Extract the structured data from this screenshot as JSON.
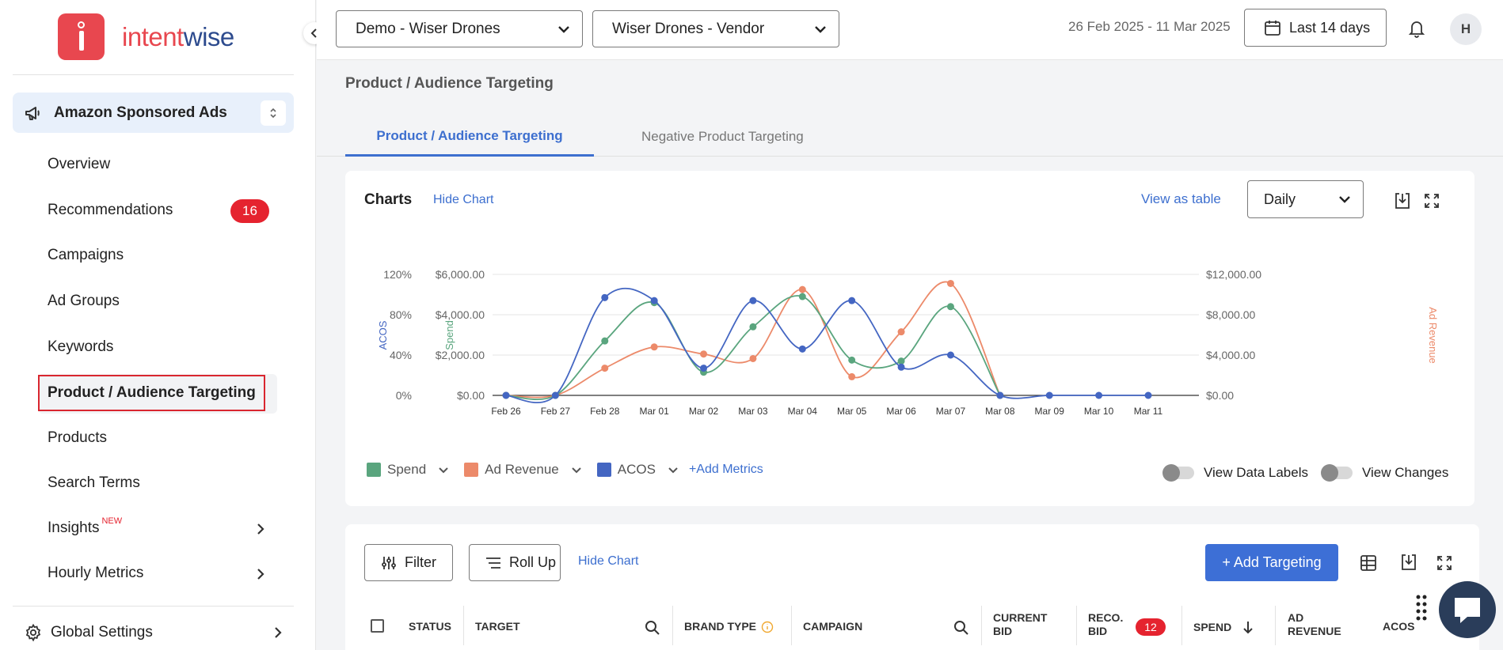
{
  "brand": {
    "part1": "intent",
    "part2": "wise"
  },
  "sidebar": {
    "channel": "Amazon Sponsored Ads",
    "items": [
      {
        "label": "Overview"
      },
      {
        "label": "Recommendations",
        "badge": "16"
      },
      {
        "label": "Campaigns"
      },
      {
        "label": "Ad Groups"
      },
      {
        "label": "Keywords"
      },
      {
        "label": "Product / Audience Targeting",
        "active": true
      },
      {
        "label": "Products"
      },
      {
        "label": "Search Terms"
      },
      {
        "label": "Insights",
        "tag": "NEW"
      },
      {
        "label": "Hourly Metrics"
      }
    ],
    "global_settings": "Global Settings"
  },
  "topbar": {
    "account": "Demo - Wiser Drones",
    "profile": "Wiser Drones - Vendor",
    "date_range": "26 Feb 2025 - 11 Mar 2025",
    "period_button": "Last 14 days",
    "avatar": "H"
  },
  "page": {
    "title": "Product / Audience Targeting",
    "tabs": [
      "Product / Audience Targeting",
      "Negative Product Targeting"
    ]
  },
  "chart_card": {
    "title": "Charts",
    "hide_chart": "Hide Chart",
    "view_as_table": "View as table",
    "granularity": "Daily",
    "legend": [
      "Spend",
      "Ad Revenue",
      "ACOS"
    ],
    "add_metrics": "+Add Metrics",
    "toggle_data_labels": "View Data Labels",
    "toggle_changes": "View Changes"
  },
  "chart_data": {
    "type": "line",
    "x": [
      "Feb 26",
      "Feb 27",
      "Feb 28",
      "Mar 01",
      "Mar 02",
      "Mar 03",
      "Mar 04",
      "Mar 05",
      "Mar 06",
      "Mar 07",
      "Mar 08",
      "Mar 09",
      "Mar 10",
      "Mar 11"
    ],
    "axes": {
      "acos": {
        "label": "ACOS",
        "ticks": [
          "0%",
          "40%",
          "80%",
          "120%"
        ],
        "range": [
          0,
          120
        ]
      },
      "spend": {
        "label": "Spend",
        "ticks": [
          "$0.00",
          "$2,000.00",
          "$4,000.00",
          "$6,000.00"
        ],
        "range": [
          0,
          6000
        ]
      },
      "revenue": {
        "label": "Ad Revenue",
        "ticks": [
          "$0.00",
          "$4,000.00",
          "$8,000.00",
          "$12,000.00"
        ],
        "range": [
          0,
          12000
        ]
      }
    },
    "series": [
      {
        "name": "Spend",
        "axis": "spend",
        "color": "#5aa57e",
        "values": [
          0,
          0,
          2700,
          4600,
          1150,
          3400,
          4900,
          1750,
          1700,
          4400,
          0,
          null,
          null,
          null
        ]
      },
      {
        "name": "Ad Revenue",
        "axis": "revenue",
        "color": "#ec8a6a",
        "values": [
          0,
          0,
          2700,
          4800,
          4100,
          3650,
          10500,
          1850,
          6300,
          11100,
          0,
          null,
          null,
          null
        ]
      },
      {
        "name": "ACOS",
        "axis": "acos",
        "color": "#4466c2",
        "values": [
          0,
          0,
          97,
          94,
          27,
          94,
          46,
          94,
          28,
          40,
          0,
          0,
          0,
          0
        ]
      }
    ],
    "grid": true,
    "legend_position": "bottom-left"
  },
  "table_card": {
    "filter": "Filter",
    "roll_up": "Roll Up",
    "hide_chart": "Hide Chart",
    "add_targeting": "+ Add Targeting",
    "columns": [
      {
        "label": "STATUS"
      },
      {
        "label": "TARGET"
      },
      {
        "label": "BRAND TYPE"
      },
      {
        "label": "CAMPAIGN"
      },
      {
        "label": "CURRENT BID"
      },
      {
        "label": "RECO. BID",
        "badge": "12"
      },
      {
        "label": "SPEND"
      },
      {
        "label": "AD REVENUE"
      },
      {
        "label": "ACOS"
      }
    ]
  },
  "colors": {
    "accent": "#3d6fcf",
    "brand_red": "#e8474f",
    "spend": "#5aa57e",
    "revenue": "#ec8a6a",
    "acos": "#4466c2"
  }
}
